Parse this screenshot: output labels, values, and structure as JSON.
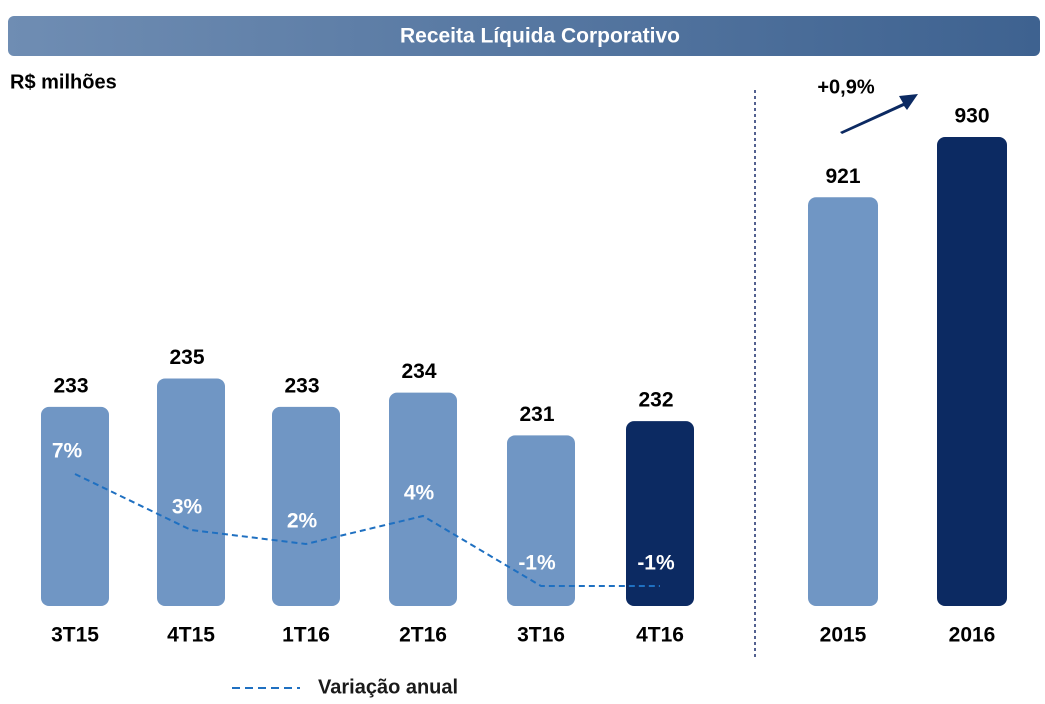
{
  "header": {
    "title": "Receita Líquida Corporativo",
    "unit": "R$ milhões"
  },
  "chart_data": [
    {
      "type": "bar",
      "categories": [
        "3T15",
        "4T15",
        "1T16",
        "2T16",
        "3T16",
        "4T16"
      ],
      "values": [
        233,
        235,
        233,
        234,
        231,
        232
      ],
      "colors": [
        "#7096c4",
        "#7096c4",
        "#7096c4",
        "#7096c4",
        "#7096c4",
        "#0c2a62"
      ],
      "ylim": [
        219,
        237
      ],
      "series": [
        {
          "name": "Variação anual",
          "type": "line",
          "axis": "y2",
          "color": "#1f70c1",
          "values": [
            7,
            3,
            2,
            4,
            -1,
            -1
          ],
          "value_labels": [
            "7%",
            "3%",
            "2%",
            "4%",
            "-1%",
            "-1%"
          ]
        }
      ],
      "y2lim": [
        -2,
        8
      ]
    },
    {
      "type": "bar",
      "categories": [
        "2015",
        "2016"
      ],
      "values": [
        921,
        930
      ],
      "colors": [
        "#7096c4",
        "#0c2a62"
      ],
      "ylim": [
        860,
        940
      ],
      "annotation": "+0,9%"
    }
  ]
}
